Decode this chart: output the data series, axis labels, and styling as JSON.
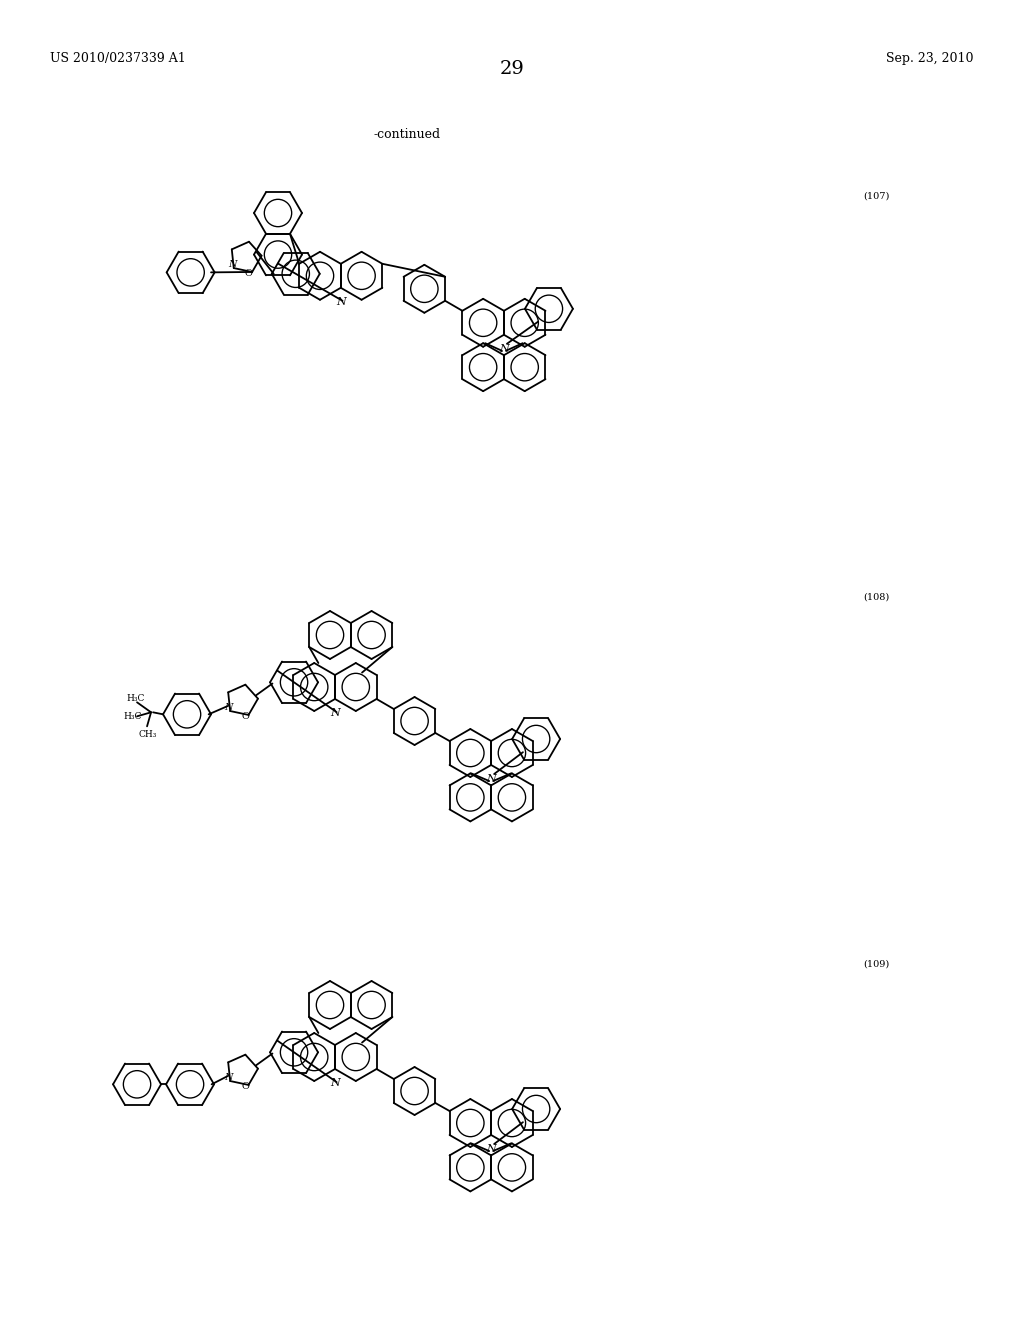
{
  "background_color": "#ffffff",
  "page_number": "29",
  "patent_number": "US 2010/0237339 A1",
  "patent_date": "Sep. 23, 2010",
  "continued_label": "-continued",
  "compound_numbers": [
    "(107)",
    "(108)",
    "(109)"
  ],
  "body_fontsize": 9,
  "small_fontsize": 7,
  "page_num_fontsize": 14
}
